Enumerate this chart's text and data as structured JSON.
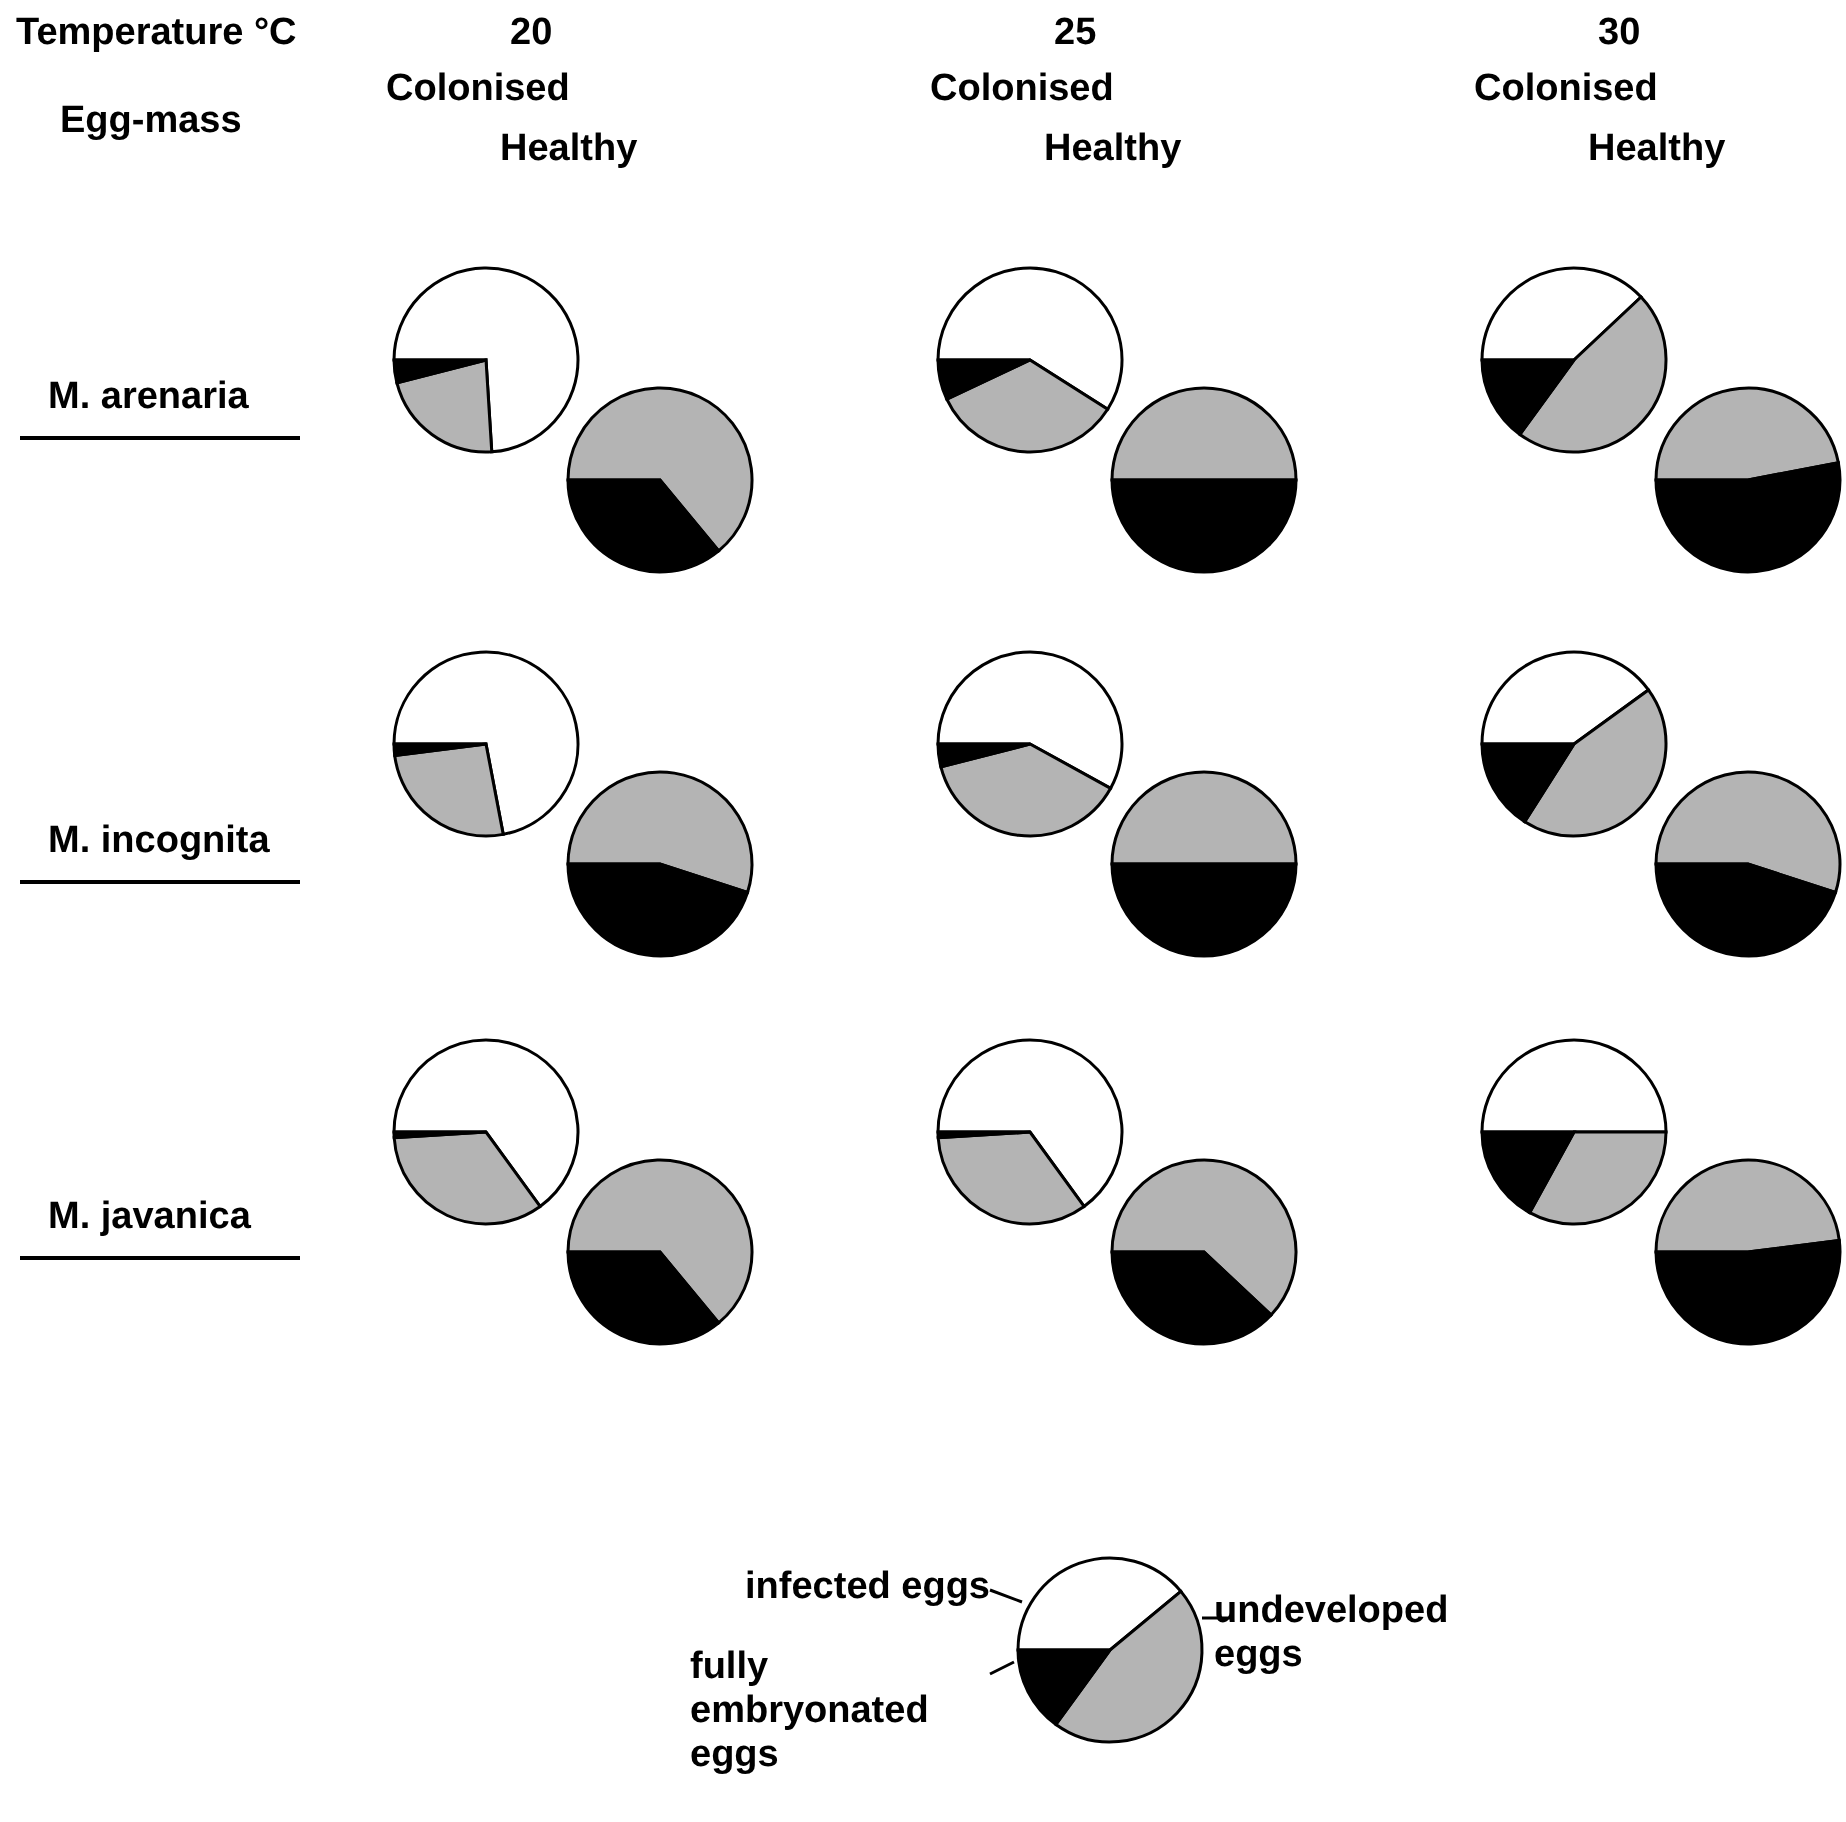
{
  "chart_data": [
    {
      "type": "other",
      "title": "Temperature °C",
      "subtitle": "Egg-mass",
      "categories": [
        "20",
        "25",
        "30"
      ],
      "y_categories": [
        "M. arenaria",
        "M. incognita",
        "M. javanica"
      ],
      "annotations": [
        "Colonised",
        "Healthy",
        "Colonised",
        "Healthy",
        "Colonised",
        "Healthy"
      ]
    },
    {
      "type": "pie",
      "categories": [
        null,
        null,
        null
      ],
      "values": [
        74,
        22,
        4
      ],
      "colors": [
        "#ffffff",
        "#b4b4b4",
        "#000000"
      ]
    },
    {
      "type": "pie",
      "categories": [
        null,
        null
      ],
      "values": [
        64,
        36
      ],
      "colors": [
        "#b4b4b4",
        "#000000"
      ]
    },
    {
      "type": "pie",
      "categories": [
        null,
        null,
        null
      ],
      "values": [
        59,
        34,
        7
      ],
      "colors": [
        "#ffffff",
        "#b4b4b4",
        "#000000"
      ]
    },
    {
      "type": "pie",
      "categories": [
        null,
        null
      ],
      "values": [
        50,
        50
      ],
      "colors": [
        "#b4b4b4",
        "#000000"
      ]
    },
    {
      "type": "pie",
      "categories": [
        null,
        null,
        null
      ],
      "values": [
        38,
        47,
        15
      ],
      "colors": [
        "#ffffff",
        "#b4b4b4",
        "#000000"
      ]
    },
    {
      "type": "pie",
      "categories": [
        null,
        null
      ],
      "values": [
        47,
        53
      ],
      "colors": [
        "#b4b4b4",
        "#000000"
      ]
    },
    {
      "type": "pie",
      "categories": [
        null,
        null,
        null
      ],
      "values": [
        72,
        26,
        2
      ],
      "colors": [
        "#ffffff",
        "#b4b4b4",
        "#000000"
      ]
    },
    {
      "type": "pie",
      "categories": [
        null,
        null
      ],
      "values": [
        55,
        45
      ],
      "colors": [
        "#b4b4b4",
        "#000000"
      ]
    },
    {
      "type": "pie",
      "categories": [
        null,
        null,
        null
      ],
      "values": [
        58,
        38,
        4
      ],
      "colors": [
        "#ffffff",
        "#b4b4b4",
        "#000000"
      ]
    },
    {
      "type": "pie",
      "categories": [
        null,
        null
      ],
      "values": [
        50,
        50
      ],
      "colors": [
        "#b4b4b4",
        "#000000"
      ]
    },
    {
      "type": "pie",
      "categories": [
        null,
        null,
        null
      ],
      "values": [
        40,
        44,
        16
      ],
      "colors": [
        "#ffffff",
        "#b4b4b4",
        "#000000"
      ]
    },
    {
      "type": "pie",
      "categories": [
        null,
        null
      ],
      "values": [
        55,
        45
      ],
      "colors": [
        "#b4b4b4",
        "#000000"
      ]
    },
    {
      "type": "pie",
      "categories": [
        null,
        null,
        null
      ],
      "values": [
        65,
        34,
        1
      ],
      "colors": [
        "#ffffff",
        "#b4b4b4",
        "#000000"
      ]
    },
    {
      "type": "pie",
      "categories": [
        null,
        null
      ],
      "values": [
        64,
        36
      ],
      "colors": [
        "#b4b4b4",
        "#000000"
      ]
    },
    {
      "type": "pie",
      "categories": [
        null,
        null,
        null
      ],
      "values": [
        65,
        34,
        1
      ],
      "colors": [
        "#ffffff",
        "#b4b4b4",
        "#000000"
      ]
    },
    {
      "type": "pie",
      "categories": [
        null,
        null
      ],
      "values": [
        62,
        38
      ],
      "colors": [
        "#b4b4b4",
        "#000000"
      ]
    },
    {
      "type": "pie",
      "categories": [
        null,
        null,
        null
      ],
      "values": [
        50,
        33,
        17
      ],
      "colors": [
        "#ffffff",
        "#b4b4b4",
        "#000000"
      ]
    },
    {
      "type": "pie",
      "categories": [
        null,
        null
      ],
      "values": [
        48,
        52
      ],
      "colors": [
        "#b4b4b4",
        "#000000"
      ]
    },
    {
      "type": "pie",
      "categories": [
        "infected eggs",
        "undeveloped eggs",
        "fully embryonated eggs"
      ],
      "values": [
        39,
        46,
        15
      ],
      "colors": [
        "#ffffff",
        "#b4b4b4",
        "#000000"
      ],
      "legend": "left"
    }
  ]
}
